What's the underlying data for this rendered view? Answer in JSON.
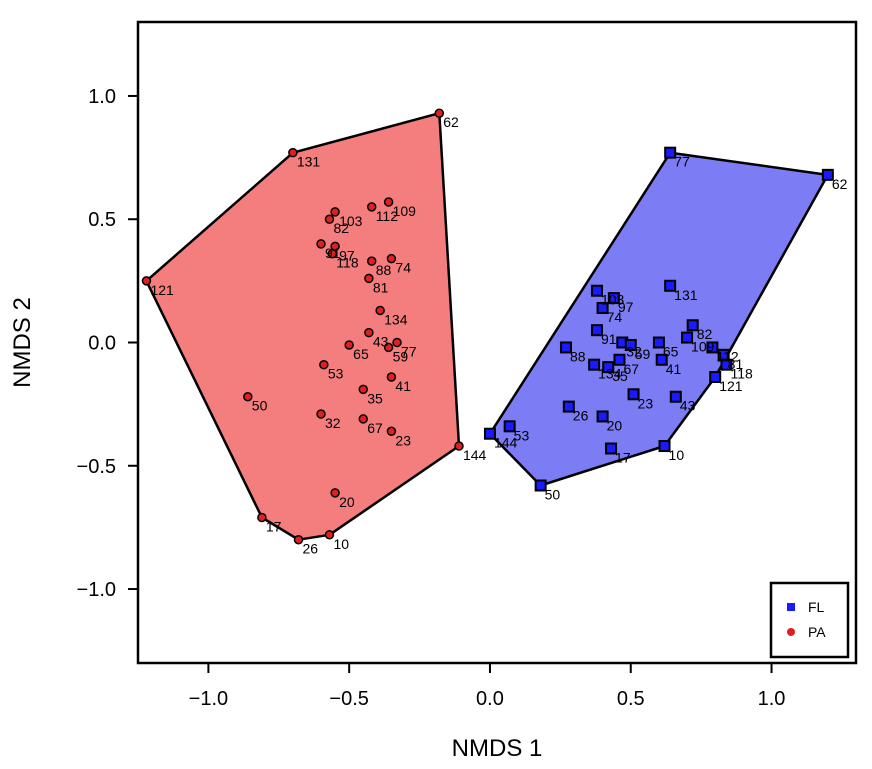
{
  "chart_data": {
    "type": "scatter",
    "xlabel": "NMDS 1",
    "ylabel": "NMDS 2",
    "xlim": [
      -1.25,
      1.3
    ],
    "ylim": [
      -1.3,
      1.3
    ],
    "x_ticks": [
      -1.0,
      -0.5,
      0.0,
      0.5,
      1.0
    ],
    "x_tick_labels": [
      "−1.0",
      "−0.5",
      "0.0",
      "0.5",
      "1.0"
    ],
    "y_ticks": [
      -1.0,
      -0.5,
      0.0,
      0.5,
      1.0
    ],
    "y_tick_labels": [
      "−1.0",
      "−0.5",
      "0.0",
      "0.5",
      "1.0"
    ],
    "grid": false,
    "legend_position": "bottom-right",
    "series": [
      {
        "name": "PA",
        "marker": "circle",
        "color": "#e02020",
        "hull_fill": "#f47e7e",
        "points": [
          {
            "label": "62",
            "x": -0.18,
            "y": 0.93
          },
          {
            "label": "131",
            "x": -0.7,
            "y": 0.77
          },
          {
            "label": "121",
            "x": -1.22,
            "y": 0.25
          },
          {
            "label": "103",
            "x": -0.55,
            "y": 0.53
          },
          {
            "label": "82",
            "x": -0.57,
            "y": 0.5
          },
          {
            "label": "112",
            "x": -0.42,
            "y": 0.55
          },
          {
            "label": "109",
            "x": -0.36,
            "y": 0.57
          },
          {
            "label": "91",
            "x": -0.6,
            "y": 0.4
          },
          {
            "label": "97",
            "x": -0.55,
            "y": 0.39
          },
          {
            "label": "118",
            "x": -0.56,
            "y": 0.36
          },
          {
            "label": "88",
            "x": -0.42,
            "y": 0.33
          },
          {
            "label": "74",
            "x": -0.35,
            "y": 0.34
          },
          {
            "label": "81",
            "x": -0.43,
            "y": 0.26
          },
          {
            "label": "134",
            "x": -0.39,
            "y": 0.13
          },
          {
            "label": "43",
            "x": -0.43,
            "y": 0.04
          },
          {
            "label": "77",
            "x": -0.33,
            "y": 0.0
          },
          {
            "label": "65",
            "x": -0.5,
            "y": -0.01
          },
          {
            "label": "59",
            "x": -0.36,
            "y": -0.02
          },
          {
            "label": "53",
            "x": -0.59,
            "y": -0.09
          },
          {
            "label": "41",
            "x": -0.35,
            "y": -0.14
          },
          {
            "label": "35",
            "x": -0.45,
            "y": -0.19
          },
          {
            "label": "50",
            "x": -0.86,
            "y": -0.22
          },
          {
            "label": "32",
            "x": -0.6,
            "y": -0.29
          },
          {
            "label": "67",
            "x": -0.45,
            "y": -0.31
          },
          {
            "label": "23",
            "x": -0.35,
            "y": -0.36
          },
          {
            "label": "144",
            "x": -0.11,
            "y": -0.42
          },
          {
            "label": "20",
            "x": -0.55,
            "y": -0.61
          },
          {
            "label": "17",
            "x": -0.81,
            "y": -0.71
          },
          {
            "label": "10",
            "x": -0.57,
            "y": -0.78
          },
          {
            "label": "26",
            "x": -0.68,
            "y": -0.8
          }
        ],
        "hull": [
          "62",
          "131",
          "121",
          "17",
          "26",
          "10",
          "144"
        ]
      },
      {
        "name": "FL",
        "marker": "square",
        "color": "#1a1aff",
        "hull_fill": "#7c7cf4",
        "points": [
          {
            "label": "77",
            "x": 0.64,
            "y": 0.77
          },
          {
            "label": "62",
            "x": 1.2,
            "y": 0.68
          },
          {
            "label": "103",
            "x": 0.38,
            "y": 0.21
          },
          {
            "label": "131",
            "x": 0.64,
            "y": 0.23
          },
          {
            "label": "97",
            "x": 0.44,
            "y": 0.18
          },
          {
            "label": "74",
            "x": 0.4,
            "y": 0.14
          },
          {
            "label": "82",
            "x": 0.72,
            "y": 0.07
          },
          {
            "label": "91",
            "x": 0.38,
            "y": 0.05
          },
          {
            "label": "32",
            "x": 0.47,
            "y": 0.0
          },
          {
            "label": "65",
            "x": 0.6,
            "y": 0.0
          },
          {
            "label": "109",
            "x": 0.7,
            "y": 0.02
          },
          {
            "label": "112",
            "x": 0.79,
            "y": -0.02
          },
          {
            "label": "81",
            "x": 0.83,
            "y": -0.05
          },
          {
            "label": "88",
            "x": 0.27,
            "y": -0.02
          },
          {
            "label": "59",
            "x": 0.5,
            "y": -0.01
          },
          {
            "label": "41",
            "x": 0.61,
            "y": -0.07
          },
          {
            "label": "118",
            "x": 0.84,
            "y": -0.09
          },
          {
            "label": "134",
            "x": 0.37,
            "y": -0.09
          },
          {
            "label": "35",
            "x": 0.42,
            "y": -0.1
          },
          {
            "label": "67",
            "x": 0.46,
            "y": -0.07
          },
          {
            "label": "121",
            "x": 0.8,
            "y": -0.14
          },
          {
            "label": "23",
            "x": 0.51,
            "y": -0.21
          },
          {
            "label": "43",
            "x": 0.66,
            "y": -0.22
          },
          {
            "label": "26",
            "x": 0.28,
            "y": -0.26
          },
          {
            "label": "20",
            "x": 0.4,
            "y": -0.3
          },
          {
            "label": "144",
            "x": 0.0,
            "y": -0.37
          },
          {
            "label": "53",
            "x": 0.07,
            "y": -0.34
          },
          {
            "label": "17",
            "x": 0.43,
            "y": -0.43
          },
          {
            "label": "10",
            "x": 0.62,
            "y": -0.42
          },
          {
            "label": "50",
            "x": 0.18,
            "y": -0.58
          }
        ],
        "hull": [
          "77",
          "62",
          "121",
          "10",
          "50",
          "144"
        ]
      }
    ]
  }
}
